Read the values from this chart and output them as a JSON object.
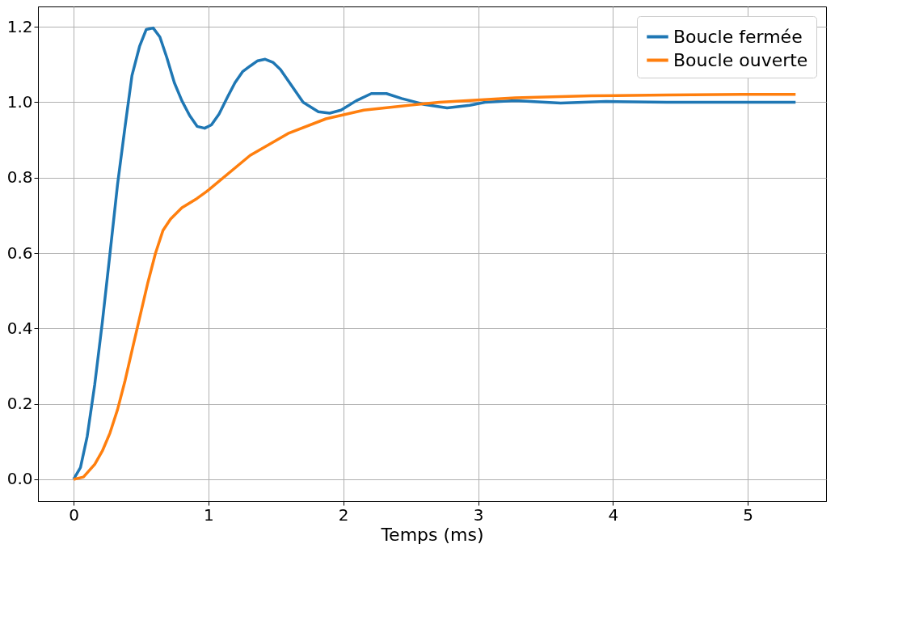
{
  "chart_data": {
    "type": "line",
    "xlabel": "Temps (ms)",
    "xlim": [
      -0.264,
      5.58
    ],
    "ylim": [
      -0.058,
      1.254
    ],
    "xticks": [
      0,
      1,
      2,
      3,
      4,
      5
    ],
    "yticks": [
      {
        "value": 0,
        "label": "0.0"
      },
      {
        "value": 0.2,
        "label": "0.2"
      },
      {
        "value": 0.4,
        "label": "0.4"
      },
      {
        "value": 0.6,
        "label": "0.6"
      },
      {
        "value": 0.8,
        "label": "0.8"
      },
      {
        "value": 1,
        "label": "1.0"
      },
      {
        "value": 1.2,
        "label": "1.2"
      }
    ],
    "grid": true,
    "legend": "top right",
    "line_style": "solid",
    "marker": "none",
    "series": [
      {
        "name": "Boucle fermée",
        "color": "#1f77b4",
        "x": [
          0,
          0.051,
          0.101,
          0.157,
          0.213,
          0.27,
          0.326,
          0.382,
          0.433,
          0.489,
          0.539,
          0.59,
          0.64,
          0.691,
          0.747,
          0.803,
          0.86,
          0.916,
          0.972,
          1.022,
          1.079,
          1.14,
          1.197,
          1.253,
          1.309,
          1.365,
          1.421,
          1.478,
          1.534,
          1.59,
          1.702,
          1.815,
          1.899,
          1.983,
          2.096,
          2.208,
          2.32,
          2.433,
          2.601,
          2.77,
          2.938,
          3.051,
          3.275,
          3.612,
          3.949,
          4.399,
          4.961,
          5.354
        ],
        "values": [
          0,
          0.031,
          0.114,
          0.252,
          0.416,
          0.599,
          0.782,
          0.936,
          1.071,
          1.148,
          1.193,
          1.197,
          1.173,
          1.119,
          1.052,
          1.004,
          0.965,
          0.936,
          0.931,
          0.94,
          0.969,
          1.013,
          1.052,
          1.081,
          1.096,
          1.11,
          1.114,
          1.106,
          1.087,
          1.058,
          1.0,
          0.975,
          0.971,
          0.979,
          1.004,
          1.023,
          1.023,
          1.01,
          0.994,
          0.985,
          0.992,
          1.0,
          1.004,
          0.998,
          1.002,
          1.0,
          1.0,
          1.0
        ]
      },
      {
        "name": "Boucle ouverte",
        "color": "#ff7f0e",
        "x": [
          0,
          0.073,
          0.157,
          0.213,
          0.27,
          0.326,
          0.382,
          0.438,
          0.494,
          0.551,
          0.607,
          0.663,
          0.719,
          0.803,
          0.916,
          1.0,
          1.309,
          1.59,
          1.871,
          2.152,
          2.433,
          2.713,
          2.994,
          3.275,
          3.837,
          4.399,
          4.961,
          5.354
        ],
        "values": [
          0,
          0.006,
          0.04,
          0.075,
          0.123,
          0.185,
          0.262,
          0.349,
          0.435,
          0.522,
          0.599,
          0.66,
          0.69,
          0.72,
          0.745,
          0.767,
          0.859,
          0.917,
          0.956,
          0.979,
          0.99,
          1.0,
          1.006,
          1.012,
          1.017,
          1.019,
          1.021,
          1.021
        ]
      }
    ]
  }
}
